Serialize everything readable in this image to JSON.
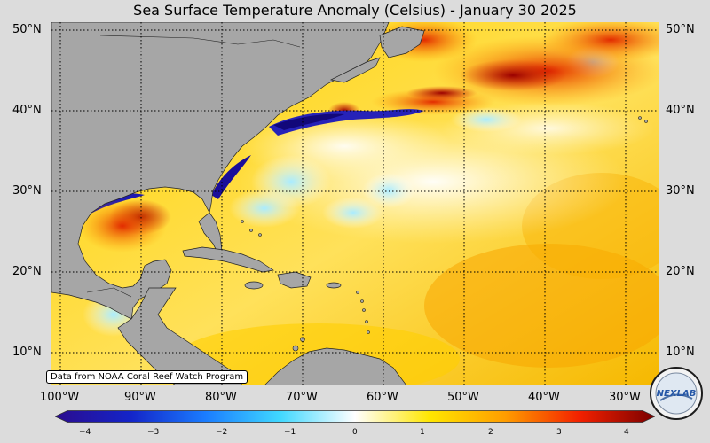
{
  "title": "Sea Surface Temperature Anomaly (Celsius) - January 30 2025",
  "latitude_labels": [
    "50°N",
    "40°N",
    "30°N",
    "20°N",
    "10°N"
  ],
  "longitude_labels": [
    "100°W",
    "90°W",
    "80°W",
    "70°W",
    "60°W",
    "50°W",
    "40°W",
    "30°W"
  ],
  "colorbar": {
    "ticks": [
      "−4",
      "−3",
      "−2",
      "−1",
      "0",
      "1",
      "2",
      "3",
      "4"
    ],
    "range": [
      -4,
      4
    ]
  },
  "credit": "Data from NOAA Coral Reef Watch Program",
  "logo_text": "NEXLAB",
  "colors": {
    "land": "#a6a6a6",
    "background": "#dcdcdc",
    "cold_extreme": "#1a0a8c",
    "warm_extreme": "#8b0000",
    "neutral": "#ffffff"
  }
}
